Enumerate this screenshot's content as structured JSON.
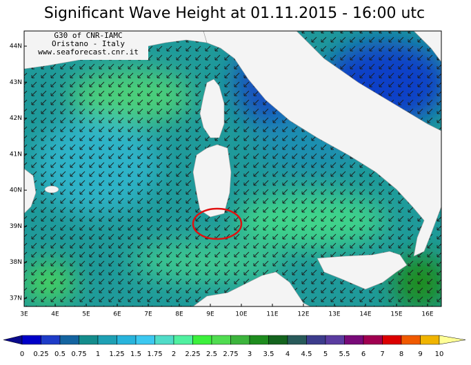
{
  "header": {
    "title": "Significant Wave Height at 01.11.2015 - 16:00 utc"
  },
  "credits": [
    "G30 of CNR-IAMC",
    "Oristano - Italy",
    "www.seaforecast.cnr.it"
  ],
  "map": {
    "lat_labels": [
      "44N",
      "43N",
      "42N",
      "41N",
      "40N",
      "39N",
      "38N",
      "37N"
    ],
    "lon_labels": [
      "3E",
      "4E",
      "5E",
      "6E",
      "7E",
      "8E",
      "9E",
      "10E",
      "11E",
      "12E",
      "13E",
      "14E",
      "15E",
      "16E"
    ]
  },
  "colorbar": {
    "levels": [
      0,
      0.25,
      0.5,
      0.75,
      1,
      1.25,
      1.5,
      1.75,
      2,
      2.25,
      2.5,
      2.75,
      3,
      3.5,
      4,
      4.5,
      5,
      5.5,
      6,
      7,
      8,
      9,
      10
    ],
    "colors": [
      "#0a0a8c",
      "#0000c8",
      "#1e3cc8",
      "#1464a0",
      "#148c8c",
      "#1ea0b4",
      "#28b4dc",
      "#3cc8f0",
      "#50dcc8",
      "#50f0a0",
      "#3cf03c",
      "#50dc50",
      "#3cb43c",
      "#1e8c1e",
      "#14641e",
      "#285a5a",
      "#3c3c8c",
      "#5a3ca0",
      "#780a78",
      "#a00050",
      "#dc0000",
      "#f05a00",
      "#f0b400",
      "#ffff96"
    ]
  }
}
